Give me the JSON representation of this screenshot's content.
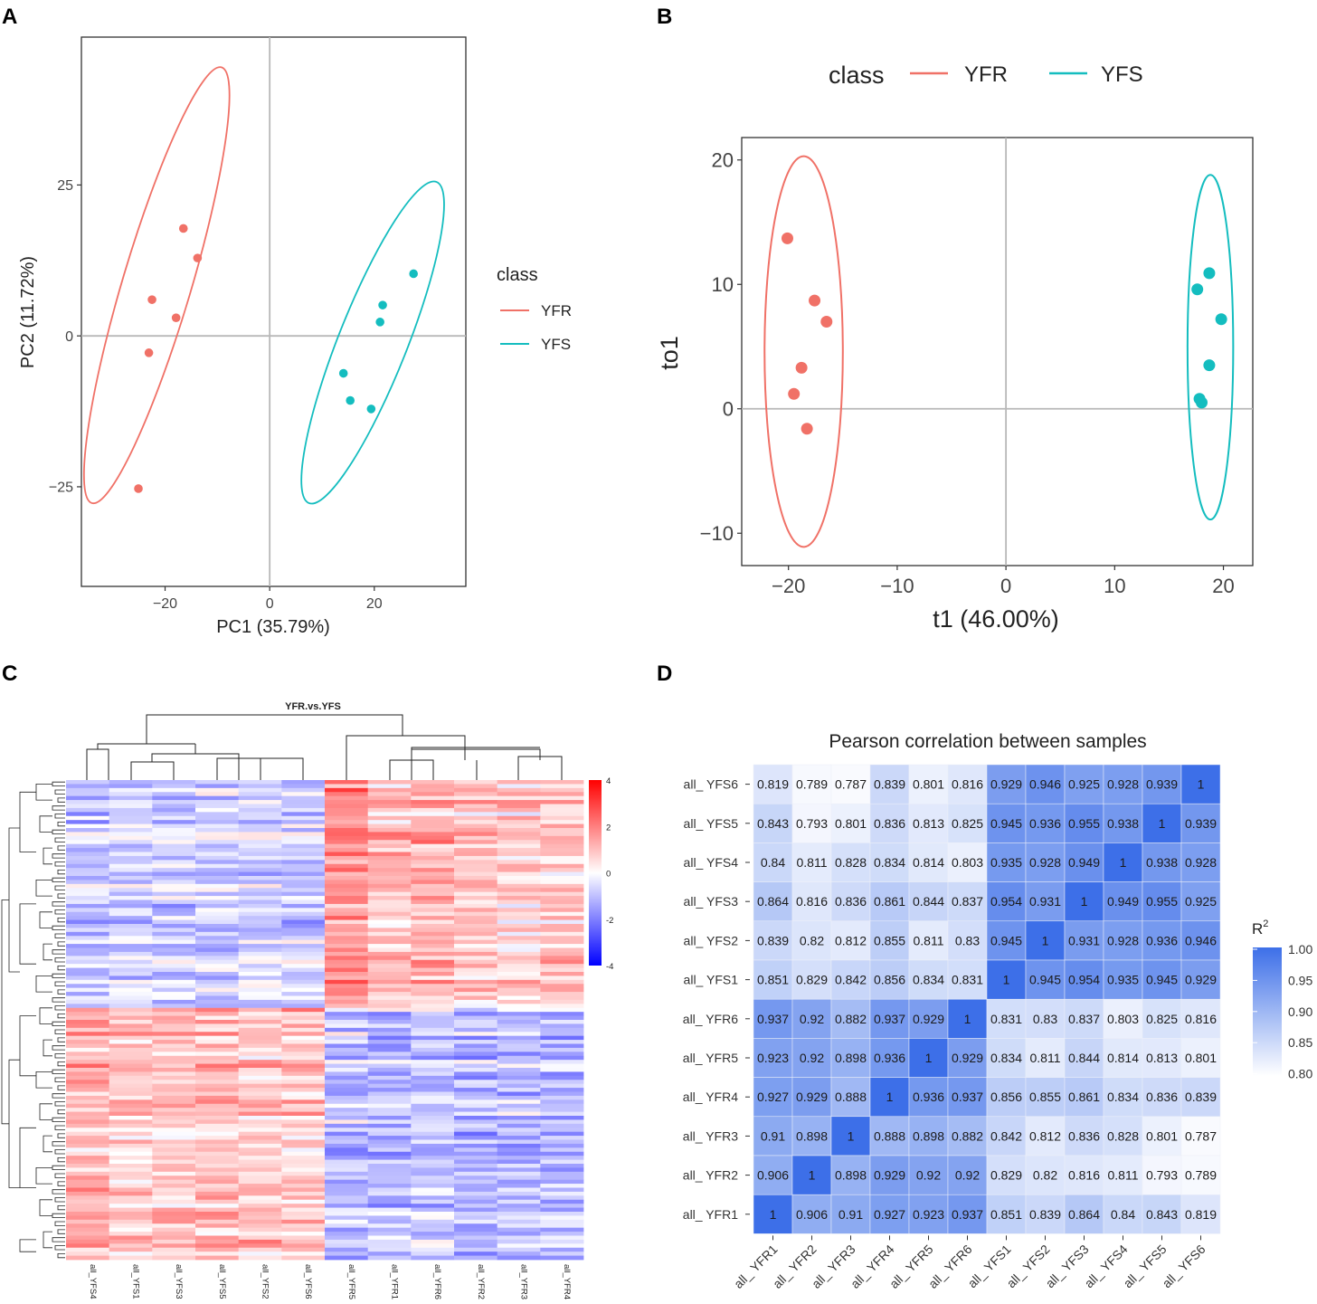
{
  "panel_labels": {
    "a": "A",
    "b": "B",
    "c": "C",
    "d": "D"
  },
  "colors": {
    "yfr": "#F07167",
    "yfs": "#14BDBF",
    "axis": "#333333",
    "grid": "#b8b8b8",
    "hm_high": "#ff0000",
    "hm_mid": "#ffffff",
    "hm_low": "#0000ff",
    "corr_high": "#3d6fe8"
  },
  "chart_data": [
    {
      "id": "pca",
      "type": "scatter",
      "title": "",
      "xlabel": "PC1 (35.79%)",
      "ylabel": "PC2 (11.72%)",
      "xlim": [
        -36,
        37.5
      ],
      "ylim": [
        -41.5,
        49.5
      ],
      "xticks": [
        {
          "v": -20,
          "label": "−20"
        },
        {
          "v": 0,
          "label": "0"
        },
        {
          "v": 20,
          "label": "20"
        }
      ],
      "yticks": [
        {
          "v": -25,
          "label": "−25"
        },
        {
          "v": 0,
          "label": "0"
        },
        {
          "v": 25,
          "label": "25"
        }
      ],
      "legend": {
        "title": "class",
        "position": "right",
        "entries": [
          "YFR",
          "YFS"
        ]
      },
      "series": [
        {
          "name": "YFR",
          "points": [
            [
              -16.5,
              17.8
            ],
            [
              -13.8,
              12.9
            ],
            [
              -22.5,
              6.0
            ],
            [
              -17.9,
              3.0
            ],
            [
              -23.1,
              -2.8
            ],
            [
              -25.1,
              -25.3
            ]
          ],
          "ellipse": [
            [
              -9.2,
              44.5
            ],
            [
              -21.6,
              8.4
            ],
            [
              -34.0,
              -27.7
            ],
            [
              -21.6,
              8.4
            ]
          ]
        },
        {
          "name": "YFS",
          "points": [
            [
              27.5,
              10.3
            ],
            [
              21.6,
              5.1
            ],
            [
              21.1,
              2.3
            ],
            [
              14.1,
              -6.2
            ],
            [
              15.4,
              -10.7
            ],
            [
              19.4,
              -12.1
            ]
          ],
          "ellipse": [
            [
              31.9,
              25.5
            ],
            [
              19.7,
              -1.1
            ],
            [
              7.5,
              -27.7
            ],
            [
              19.7,
              -1.1
            ]
          ]
        }
      ]
    },
    {
      "id": "oplsda",
      "type": "scatter",
      "title": "",
      "xlabel": "t1 (46.00%)",
      "ylabel": "to1",
      "xlim": [
        -24.3,
        22.7
      ],
      "ylim": [
        -12.6,
        21.8
      ],
      "xticks": [
        {
          "v": -20,
          "label": "−20"
        },
        {
          "v": -10,
          "label": "−10"
        },
        {
          "v": 0,
          "label": "0"
        },
        {
          "v": 10,
          "label": "10"
        },
        {
          "v": 20,
          "label": "20"
        }
      ],
      "yticks": [
        {
          "v": -10,
          "label": "−10"
        },
        {
          "v": 0,
          "label": "0"
        },
        {
          "v": 10,
          "label": "10"
        },
        {
          "v": 20,
          "label": "20"
        }
      ],
      "legend": {
        "title": "class",
        "position": "top",
        "entries": [
          "YFR",
          "YFS"
        ]
      },
      "series": [
        {
          "name": "YFR",
          "points": [
            [
              -20.1,
              13.7
            ],
            [
              -17.6,
              8.7
            ],
            [
              -16.5,
              7.0
            ],
            [
              -18.8,
              3.3
            ],
            [
              -19.5,
              1.2
            ],
            [
              -18.3,
              -1.6
            ]
          ],
          "ellipse": [
            [
              -18.6,
              20.3
            ],
            [
              -18.6,
              4.6
            ],
            [
              -18.6,
              -11.1
            ],
            [
              -18.6,
              4.6
            ]
          ],
          "rx": 3.6
        },
        {
          "name": "YFS",
          "points": [
            [
              18.7,
              10.9
            ],
            [
              17.6,
              9.6
            ],
            [
              19.8,
              7.2
            ],
            [
              18.7,
              3.5
            ],
            [
              17.8,
              0.8
            ],
            [
              18.0,
              0.5
            ]
          ],
          "ellipse": [
            [
              18.8,
              18.8
            ],
            [
              18.8,
              5.0
            ],
            [
              18.8,
              -8.9
            ],
            [
              18.8,
              5.0
            ]
          ],
          "rx": 2.1
        }
      ]
    },
    {
      "id": "heatmap",
      "type": "heatmap",
      "title": "YFR.vs.YFS",
      "columns": [
        "all_YFS4",
        "all_YFS1",
        "all_YFS3",
        "all_YFS5",
        "all_YFS2",
        "all_YFS6",
        "all_YFR5",
        "all_YFR1",
        "all_YFR6",
        "all_YFR2",
        "all_YFR3",
        "all_YFR4"
      ],
      "rows": 120,
      "zlim": [
        -4,
        4
      ],
      "colorbar_ticks": [
        "4",
        "2",
        "0",
        "-2",
        "-4"
      ],
      "row_blocks": [
        {
          "from": 0,
          "to": 57,
          "means": [
            -0.9,
            -0.6,
            -0.7,
            -0.6,
            -0.6,
            -0.8,
            1.8,
            1.0,
            1.2,
            0.9,
            0.8,
            0.9
          ]
        },
        {
          "from": 57,
          "to": 120,
          "means": [
            1.2,
            0.9,
            1.0,
            1.2,
            1.0,
            1.0,
            -0.8,
            -0.9,
            -0.8,
            -1.0,
            -0.9,
            -0.9
          ]
        }
      ],
      "seed": 7
    },
    {
      "id": "pearson",
      "type": "heatmap",
      "title": "Pearson correlation between samples",
      "legend_title": "R²",
      "colorbar_ticks": [
        "1.00",
        "0.95",
        "0.90",
        "0.85",
        "0.80"
      ],
      "zlim": [
        0.78,
        1.0
      ],
      "x_labels": [
        "all_ YFR1",
        "all_ YFR2",
        "all_ YFR3",
        "all_ YFR4",
        "all_ YFR5",
        "all_ YFR6",
        "all_ YFS1",
        "all_ YFS2",
        "all_ YFS3",
        "all_ YFS4",
        "all_ YFS5",
        "all_ YFS6"
      ],
      "y_labels": [
        "all_ YFS6",
        "all_ YFS5",
        "all_ YFS4",
        "all_ YFS3",
        "all_ YFS2",
        "all_ YFS1",
        "all_ YFR6",
        "all_ YFR5",
        "all_ YFR4",
        "all_ YFR3",
        "all_ YFR2",
        "all_ YFR1"
      ],
      "matrix": [
        [
          "0.819",
          "0.789",
          "0.787",
          "0.839",
          "0.801",
          "0.816",
          "0.929",
          "0.946",
          "0.925",
          "0.928",
          "0.939",
          "1"
        ],
        [
          "0.843",
          "0.793",
          "0.801",
          "0.836",
          "0.813",
          "0.825",
          "0.945",
          "0.936",
          "0.955",
          "0.938",
          "1",
          "0.939"
        ],
        [
          "0.84",
          "0.811",
          "0.828",
          "0.834",
          "0.814",
          "0.803",
          "0.935",
          "0.928",
          "0.949",
          "1",
          "0.938",
          "0.928"
        ],
        [
          "0.864",
          "0.816",
          "0.836",
          "0.861",
          "0.844",
          "0.837",
          "0.954",
          "0.931",
          "1",
          "0.949",
          "0.955",
          "0.925"
        ],
        [
          "0.839",
          "0.82",
          "0.812",
          "0.855",
          "0.811",
          "0.83",
          "0.945",
          "1",
          "0.931",
          "0.928",
          "0.936",
          "0.946"
        ],
        [
          "0.851",
          "0.829",
          "0.842",
          "0.856",
          "0.834",
          "0.831",
          "1",
          "0.945",
          "0.954",
          "0.935",
          "0.945",
          "0.929"
        ],
        [
          "0.937",
          "0.92",
          "0.882",
          "0.937",
          "0.929",
          "1",
          "0.831",
          "0.83",
          "0.837",
          "0.803",
          "0.825",
          "0.816"
        ],
        [
          "0.923",
          "0.92",
          "0.898",
          "0.936",
          "1",
          "0.929",
          "0.834",
          "0.811",
          "0.844",
          "0.814",
          "0.813",
          "0.801"
        ],
        [
          "0.927",
          "0.929",
          "0.888",
          "1",
          "0.936",
          "0.937",
          "0.856",
          "0.855",
          "0.861",
          "0.834",
          "0.836",
          "0.839"
        ],
        [
          "0.91",
          "0.898",
          "1",
          "0.888",
          "0.898",
          "0.882",
          "0.842",
          "0.812",
          "0.836",
          "0.828",
          "0.801",
          "0.787"
        ],
        [
          "0.906",
          "1",
          "0.898",
          "0.929",
          "0.92",
          "0.92",
          "0.829",
          "0.82",
          "0.816",
          "0.811",
          "0.793",
          "0.789"
        ],
        [
          "1",
          "0.906",
          "0.91",
          "0.927",
          "0.923",
          "0.937",
          "0.851",
          "0.839",
          "0.864",
          "0.84",
          "0.843",
          "0.819"
        ]
      ]
    }
  ]
}
